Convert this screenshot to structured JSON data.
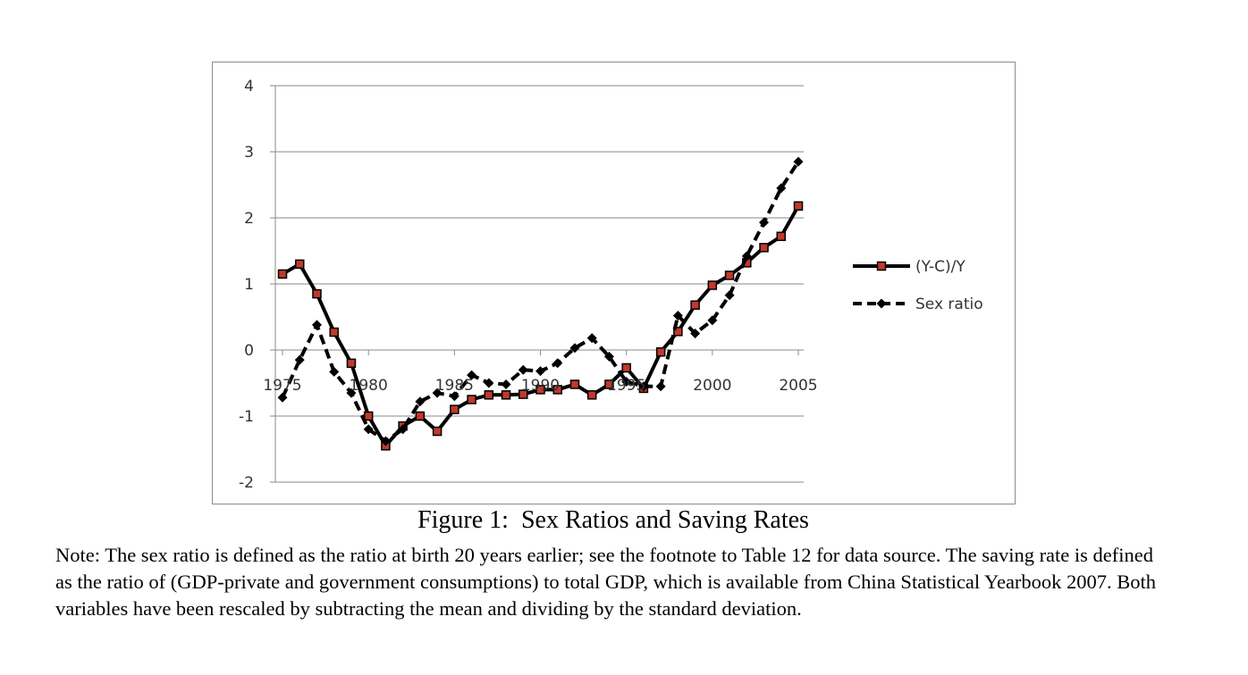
{
  "figure": {
    "caption": "Figure 1:  Sex Ratios and Saving Rates",
    "note": "Note: The sex ratio is defined as the ratio at birth 20 years earlier; see the footnote to Table 12 for data source. The saving rate is defined as the ratio of (GDP-private and government consumptions) to total GDP, which is available from China Statistical Yearbook 2007. Both variables have been rescaled by subtracting the mean and dividing by the standard deviation."
  },
  "chart_data": {
    "type": "line",
    "title": "",
    "xlabel": "",
    "ylabel": "",
    "xlim": [
      1975,
      2005
    ],
    "ylim": [
      -2,
      4
    ],
    "yticks": [
      -2,
      -1,
      0,
      1,
      2,
      3,
      4
    ],
    "xticks": [
      1975,
      1980,
      1985,
      1990,
      1995,
      2000,
      2005
    ],
    "xtick_labels": [
      "1975",
      "1980",
      "1985",
      "1990",
      "1995",
      "2000",
      "2005"
    ],
    "grid": true,
    "legend_position": "right",
    "series": [
      {
        "name": "(Y-C)/Y",
        "style": "solid",
        "marker": "square",
        "color": "#000000",
        "marker_fill": "#c0392b",
        "x": [
          1975,
          1976,
          1977,
          1978,
          1979,
          1980,
          1981,
          1982,
          1983,
          1984,
          1985,
          1986,
          1987,
          1988,
          1989,
          1990,
          1991,
          1992,
          1993,
          1994,
          1995,
          1996,
          1997,
          1998,
          1999,
          2000,
          2001,
          2002,
          2003,
          2004,
          2005
        ],
        "y": [
          1.15,
          1.3,
          0.85,
          0.27,
          -0.2,
          -1.0,
          -1.45,
          -1.15,
          -1.0,
          -1.23,
          -0.9,
          -0.75,
          -0.68,
          -0.68,
          -0.67,
          -0.6,
          -0.6,
          -0.52,
          -0.68,
          -0.52,
          -0.27,
          -0.58,
          -0.03,
          0.28,
          0.68,
          0.98,
          1.13,
          1.32,
          1.55,
          1.72,
          2.18
        ]
      },
      {
        "name": "Sex ratio",
        "style": "dashed",
        "marker": "diamond",
        "color": "#000000",
        "x": [
          1975,
          1976,
          1977,
          1978,
          1979,
          1980,
          1981,
          1982,
          1983,
          1984,
          1985,
          1986,
          1987,
          1988,
          1989,
          1990,
          1991,
          1992,
          1993,
          1994,
          1995,
          1996,
          1997,
          1998,
          1999,
          2000,
          2001,
          2002,
          2003,
          2004,
          2005
        ],
        "y": [
          -0.72,
          -0.15,
          0.38,
          -0.33,
          -0.65,
          -1.2,
          -1.38,
          -1.2,
          -0.78,
          -0.65,
          -0.7,
          -0.38,
          -0.5,
          -0.52,
          -0.3,
          -0.32,
          -0.2,
          0.03,
          0.18,
          -0.1,
          -0.48,
          -0.55,
          -0.55,
          0.52,
          0.25,
          0.45,
          0.83,
          1.42,
          1.93,
          2.45,
          2.85
        ]
      }
    ]
  }
}
